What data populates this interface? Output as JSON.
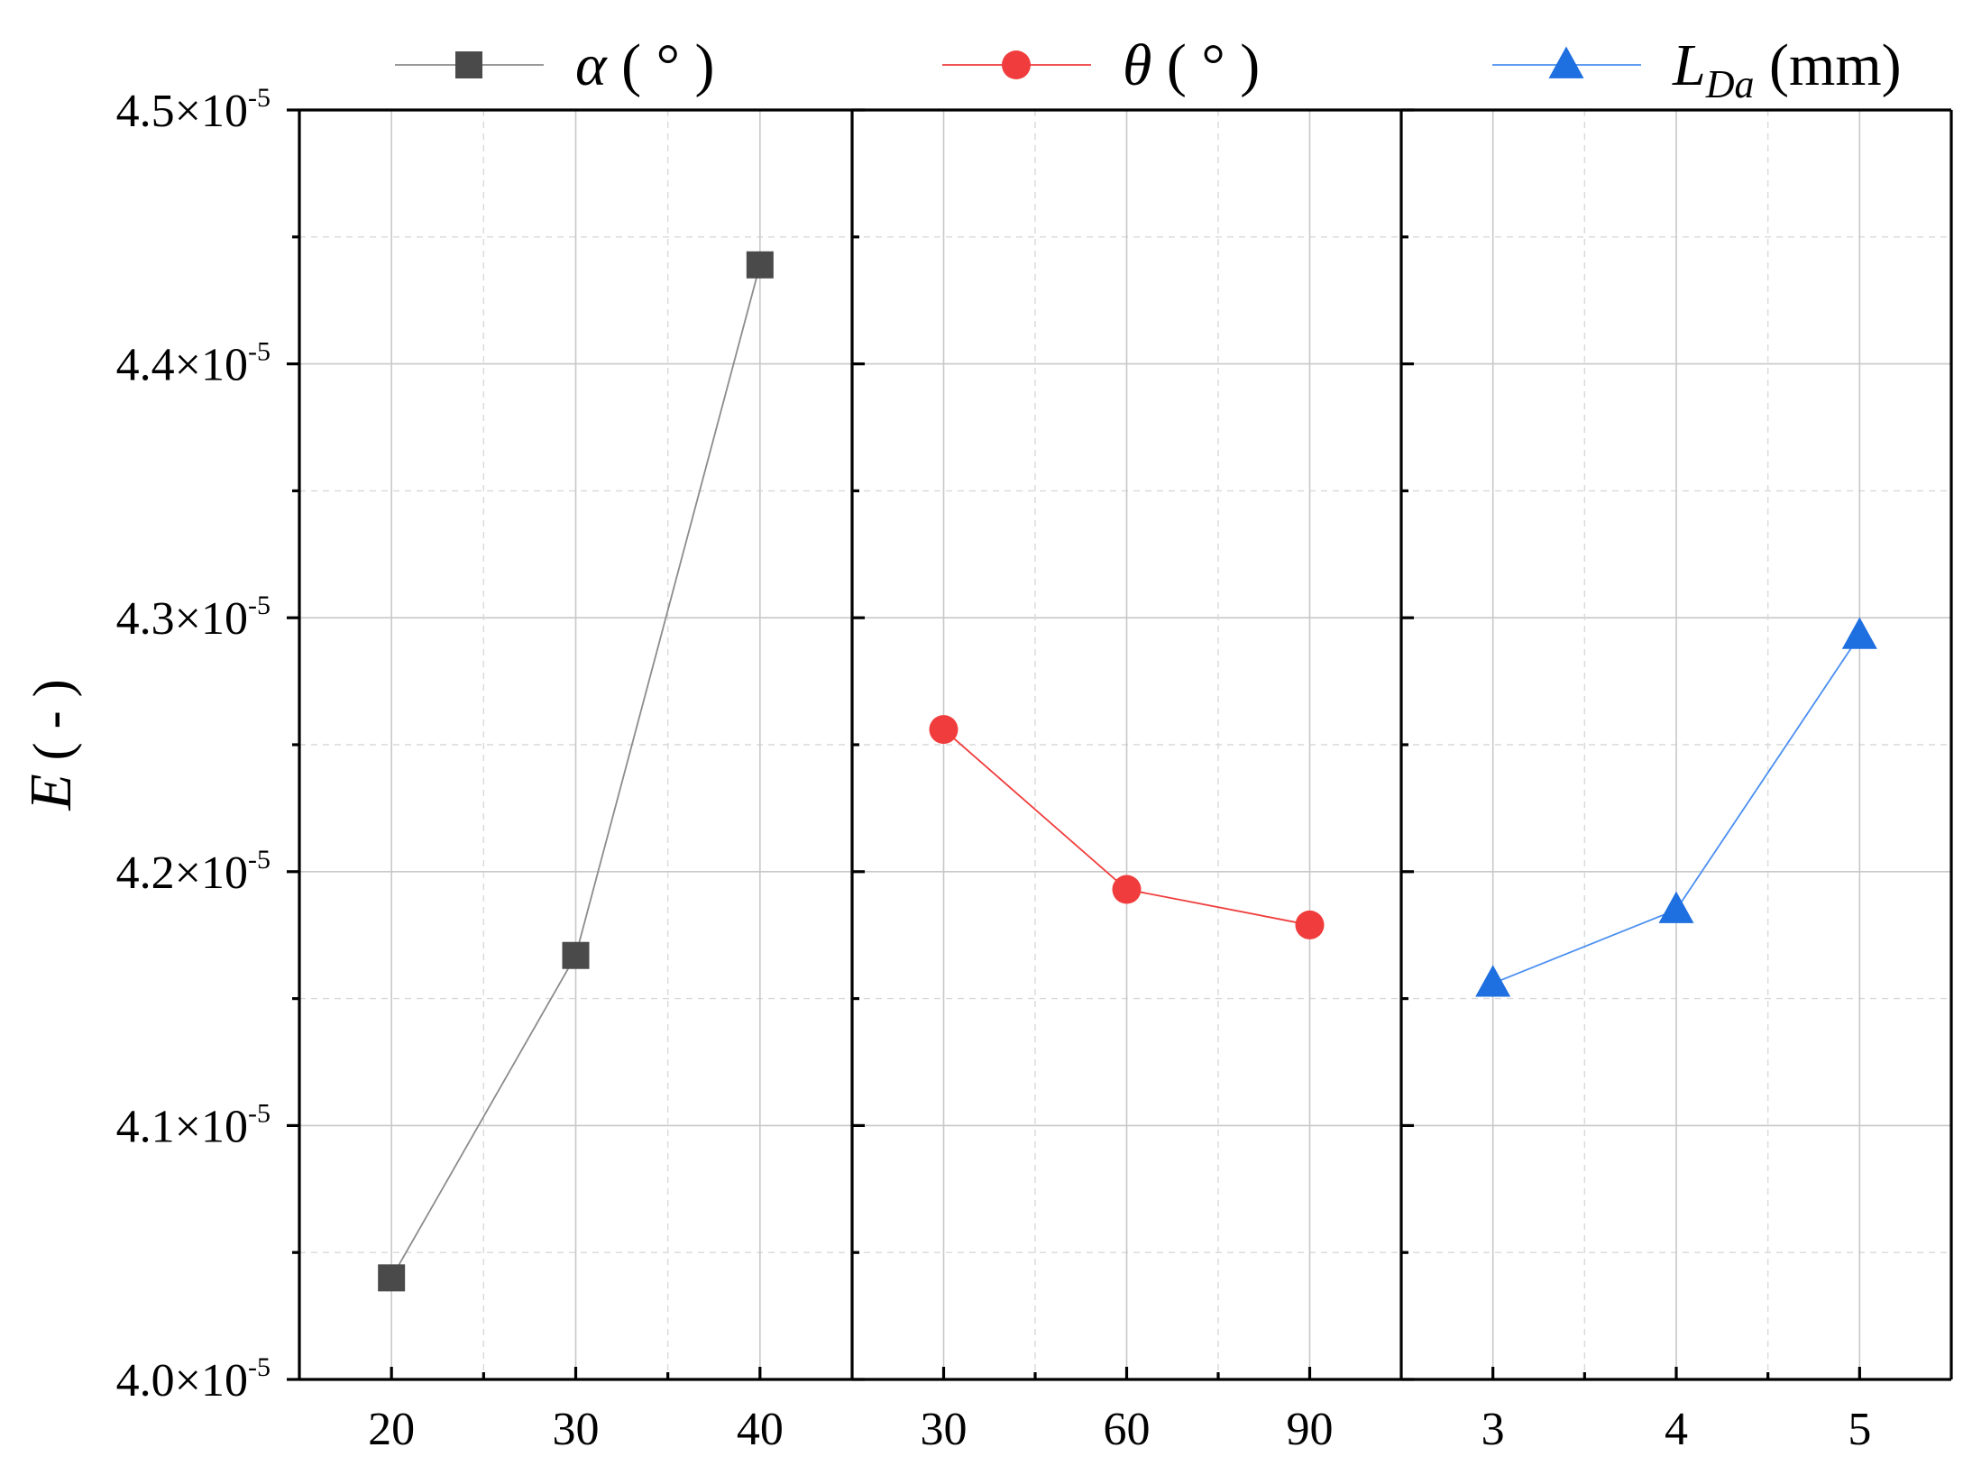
{
  "chart_data": {
    "type": "line",
    "ylabel_symbol": "E",
    "ylabel_unit": "( - )",
    "y_tick_mantissas": [
      "4.0",
      "4.1",
      "4.2",
      "4.3",
      "4.4",
      "4.5"
    ],
    "y_tick_base": "×10",
    "y_tick_exponent": "-5",
    "ylim": [
      4e-05,
      4.5e-05
    ],
    "y_major_ticks": [
      4e-05,
      4.1e-05,
      4.2e-05,
      4.3e-05,
      4.4e-05,
      4.5e-05
    ],
    "y_minor_ticks": [
      4.05e-05,
      4.15e-05,
      4.25e-05,
      4.35e-05,
      4.45e-05
    ],
    "grid": true,
    "legend_position": "top",
    "panels": [
      {
        "series_symbol": "α",
        "series_unit": "( ° )",
        "series_name": "α ( ° )",
        "marker": "square",
        "color": "#4a4a4a",
        "line_color": "#8c8c8c",
        "x": [
          20,
          30,
          40
        ],
        "x_tick_labels": [
          "20",
          "30",
          "40"
        ],
        "xlim": [
          15,
          45
        ],
        "x_minor_ticks": [
          25,
          35
        ],
        "values": [
          4.04e-05,
          4.167e-05,
          4.439e-05
        ]
      },
      {
        "series_symbol": "θ",
        "series_unit": "( ° )",
        "series_name": "θ ( ° )",
        "marker": "circle",
        "color": "#f03c3c",
        "line_color": "#f03c3c",
        "x": [
          30,
          60,
          90
        ],
        "x_tick_labels": [
          "30",
          "60",
          "90"
        ],
        "xlim": [
          15,
          105
        ],
        "x_minor_ticks": [
          45,
          75
        ],
        "values": [
          4.256e-05,
          4.193e-05,
          4.179e-05
        ]
      },
      {
        "series_symbol": "L",
        "series_subscript": "Da",
        "series_unit": "(mm)",
        "series_name": "LDa (mm)",
        "marker": "triangle",
        "color": "#1e6fe0",
        "line_color": "#4a8ff0",
        "x": [
          3,
          4,
          5
        ],
        "x_tick_labels": [
          "3",
          "4",
          "5"
        ],
        "xlim": [
          2.5,
          5.5
        ],
        "x_minor_ticks": [
          3.5,
          4.5
        ],
        "values": [
          4.156e-05,
          4.185e-05,
          4.293e-05
        ]
      }
    ]
  }
}
